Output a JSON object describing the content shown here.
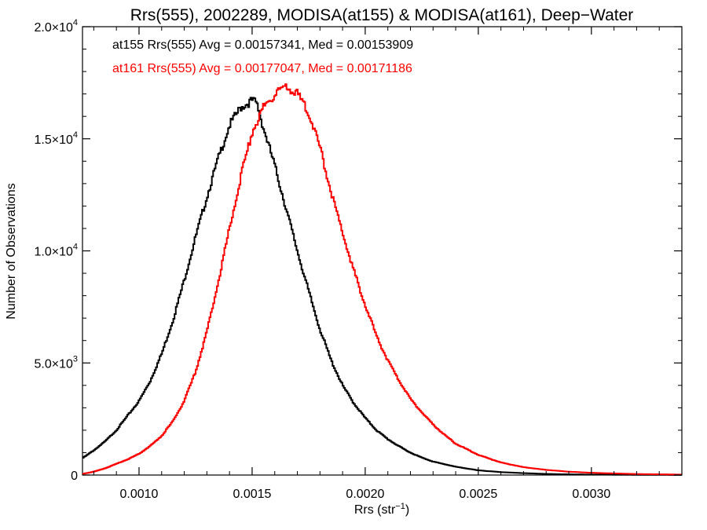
{
  "chart_data": {
    "type": "line",
    "title": "Rrs(555), 2002289, MODISA(at155) & MODISA(at161), Deep−Water",
    "xlabel": "Rrs (str",
    "xlabel_sup": "−1",
    "xlabel_close": ")",
    "ylabel": "Number of Observations",
    "xlim": [
      0.00075,
      0.0034
    ],
    "ylim": [
      0,
      20000
    ],
    "xticks": [
      {
        "value": 0.001,
        "label": "0.0010"
      },
      {
        "value": 0.0015,
        "label": "0.0015"
      },
      {
        "value": 0.002,
        "label": "0.0020"
      },
      {
        "value": 0.0025,
        "label": "0.0025"
      },
      {
        "value": 0.003,
        "label": "0.0030"
      }
    ],
    "yticks": [
      {
        "value": 0,
        "label": "0",
        "mant": "0",
        "exp": ""
      },
      {
        "value": 5000,
        "label": "5.0×10³",
        "mant": "5.0×10",
        "exp": "3"
      },
      {
        "value": 10000,
        "label": "1.0×10⁴",
        "mant": "1.0×10",
        "exp": "4"
      },
      {
        "value": 15000,
        "label": "1.5×10⁴",
        "mant": "1.5×10",
        "exp": "4"
      },
      {
        "value": 20000,
        "label": "2.0×10⁴",
        "mant": "2.0×10",
        "exp": "4"
      }
    ],
    "annotations": [
      {
        "text": "at155 Rrs(555) Avg = 0.00157341, Med = 0.00153909",
        "color": "#000000"
      },
      {
        "text": "at161 Rrs(555) Avg = 0.00177047, Med = 0.00171186",
        "color": "#ff0000"
      }
    ],
    "series": [
      {
        "color": "#000000",
        "x": [
          0.00075,
          0.0008,
          0.00085,
          0.0009,
          0.00095,
          0.001,
          0.00105,
          0.0011,
          0.00115,
          0.0012,
          0.00125,
          0.0013,
          0.00135,
          0.0014,
          0.00145,
          0.0015,
          0.00152,
          0.00155,
          0.0016,
          0.00165,
          0.0017,
          0.00175,
          0.0018,
          0.00185,
          0.0019,
          0.00195,
          0.002,
          0.00205,
          0.0021,
          0.00215,
          0.0022,
          0.00225,
          0.0023,
          0.0024,
          0.0025,
          0.0026,
          0.0027,
          0.0028,
          0.0029,
          0.003,
          0.0032,
          0.0034
        ],
        "y": [
          750,
          1100,
          1500,
          2000,
          2650,
          3300,
          4200,
          5400,
          6900,
          8700,
          10600,
          12400,
          14100,
          15600,
          16400,
          16700,
          16600,
          15500,
          13800,
          11900,
          10000,
          8200,
          6500,
          5100,
          4000,
          3200,
          2550,
          2000,
          1600,
          1280,
          1000,
          780,
          600,
          370,
          210,
          130,
          85,
          50,
          30,
          20,
          10,
          5
        ]
      },
      {
        "color": "#ff0000",
        "x": [
          0.00075,
          0.0008,
          0.00085,
          0.0009,
          0.00095,
          0.001,
          0.00105,
          0.0011,
          0.00115,
          0.0012,
          0.00125,
          0.0013,
          0.00135,
          0.0014,
          0.00145,
          0.0015,
          0.00155,
          0.0016,
          0.00163,
          0.00166,
          0.0017,
          0.00175,
          0.0018,
          0.00185,
          0.0019,
          0.00195,
          0.002,
          0.00205,
          0.0021,
          0.00215,
          0.0022,
          0.00225,
          0.0023,
          0.00235,
          0.0024,
          0.0025,
          0.0026,
          0.0027,
          0.0028,
          0.0029,
          0.003,
          0.0032,
          0.0034
        ],
        "y": [
          50,
          150,
          300,
          500,
          700,
          950,
          1300,
          1750,
          2400,
          3300,
          4600,
          6400,
          8600,
          11000,
          13300,
          15300,
          16400,
          17000,
          17200,
          17250,
          17000,
          16200,
          14600,
          12600,
          10800,
          9100,
          7600,
          6200,
          5100,
          4200,
          3400,
          2800,
          2250,
          1800,
          1400,
          900,
          560,
          350,
          230,
          150,
          100,
          45,
          20
        ]
      }
    ]
  }
}
